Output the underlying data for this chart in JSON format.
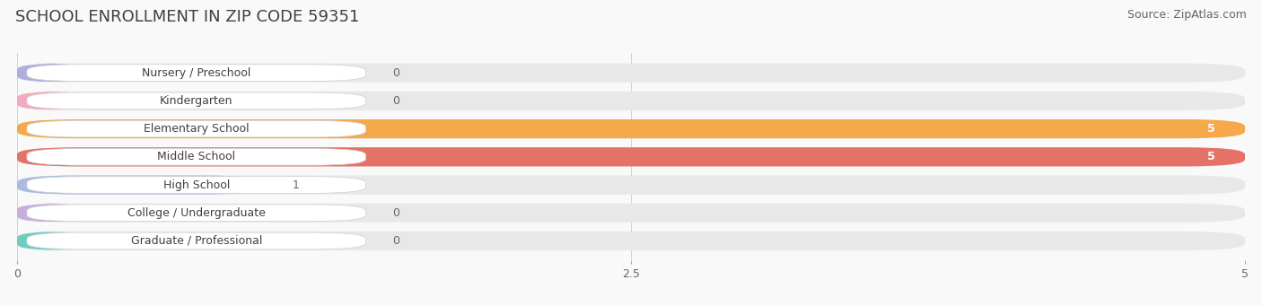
{
  "title": "SCHOOL ENROLLMENT IN ZIP CODE 59351",
  "source": "Source: ZipAtlas.com",
  "categories": [
    "Nursery / Preschool",
    "Kindergarten",
    "Elementary School",
    "Middle School",
    "High School",
    "College / Undergraduate",
    "Graduate / Professional"
  ],
  "values": [
    0,
    0,
    5,
    5,
    1,
    0,
    0
  ],
  "bar_colors": [
    "#b0aede",
    "#f4aac0",
    "#f5a94a",
    "#e57268",
    "#a8bce0",
    "#c8aedd",
    "#72ccc4"
  ],
  "label_bg_color": "#ffffff",
  "bar_bg_color": "#e8e8e8",
  "xlim": [
    0,
    5
  ],
  "xticks": [
    0,
    2.5,
    5
  ],
  "value_label_color_zero": "#666666",
  "value_label_color_nonzero_large": "#ffffff",
  "value_label_color_nonzero_small": "#666666",
  "title_fontsize": 13,
  "source_fontsize": 9,
  "label_fontsize": 9,
  "value_fontsize": 9,
  "background_color": "#f9f9f9"
}
